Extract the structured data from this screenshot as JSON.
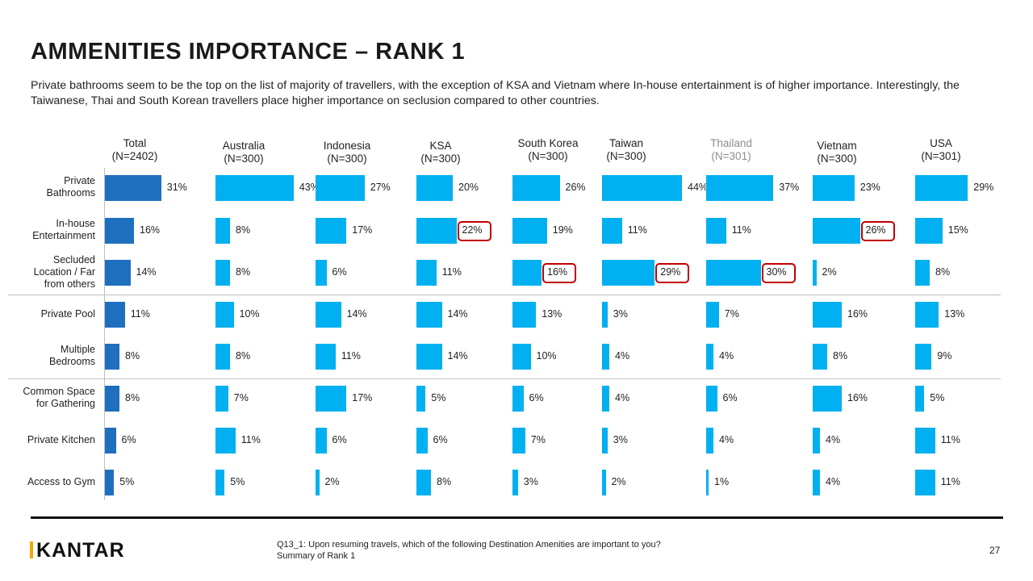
{
  "page": {
    "title": "AMMENITIES IMPORTANCE – RANK 1",
    "subtitle": "Private bathrooms seem to be the top on the list of majority of travellers, with the exception of KSA and Vietnam where In-house  entertainment  is of higher importance. Interestingly,  the Taiwanese, Thai and South Korean travellers place higher importance on seclusion compared to other countries.",
    "footnote_line1": "Q13_1: Upon resuming travels, which of the following Destination Amenities are important to you?",
    "footnote_line2": "Summary of Rank 1",
    "page_number": "27",
    "logo_text": "KANTAR"
  },
  "colors": {
    "total_bar": "#1f6fbf",
    "country_bar": "#00b0f0",
    "highlight_border": "#c00000",
    "logo_accent": "#f2a900",
    "muted_header": "#8c8c8c"
  },
  "chart_data": {
    "type": "bar",
    "orientation": "horizontal",
    "categories": [
      "Private Bathrooms",
      "In-house Entertainment",
      "Secluded Location / Far from others",
      "Private Pool",
      "Multiple Bedrooms",
      "Common Space for Gathering",
      "Private Kitchen",
      "Access to Gym"
    ],
    "unit": "%",
    "series": [
      {
        "name": "Total",
        "n": "(N=2402)",
        "values": [
          31,
          16,
          14,
          11,
          8,
          8,
          6,
          5
        ],
        "highlight": []
      },
      {
        "name": "Australia",
        "n": "(N=300)",
        "values": [
          43,
          8,
          8,
          10,
          8,
          7,
          11,
          5
        ],
        "highlight": []
      },
      {
        "name": "Indonesia",
        "n": "(N=300)",
        "values": [
          27,
          17,
          6,
          14,
          11,
          17,
          6,
          2
        ],
        "highlight": []
      },
      {
        "name": "KSA",
        "n": "(N=300)",
        "values": [
          20,
          22,
          11,
          14,
          14,
          5,
          6,
          8
        ],
        "highlight": [
          1
        ]
      },
      {
        "name": "South Korea",
        "n": "(N=300)",
        "values": [
          26,
          19,
          16,
          13,
          10,
          6,
          7,
          3
        ],
        "highlight": [
          2
        ]
      },
      {
        "name": "Taiwan",
        "n": "(N=300)",
        "values": [
          44,
          11,
          29,
          3,
          4,
          4,
          3,
          2
        ],
        "highlight": [
          2
        ]
      },
      {
        "name": "Thailand",
        "n": "(N=301)",
        "values": [
          37,
          11,
          30,
          7,
          4,
          6,
          4,
          1
        ],
        "highlight": [
          2
        ],
        "muted": true
      },
      {
        "name": "Vietnam",
        "n": "(N=300)",
        "values": [
          23,
          26,
          2,
          16,
          8,
          16,
          4,
          4
        ],
        "highlight": [
          1
        ]
      },
      {
        "name": "USA",
        "n": "(N=301)",
        "values": [
          29,
          15,
          8,
          13,
          9,
          5,
          11,
          11
        ],
        "highlight": []
      }
    ]
  }
}
